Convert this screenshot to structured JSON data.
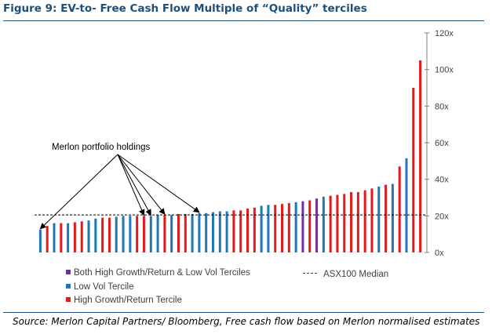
{
  "figure": {
    "title": "Figure 9: EV-to- Free Cash Flow Multiple of “Quality” terciles",
    "source": "Source: Merlon Capital Partners/ Bloomberg, Free cash flow based on Merlon normalised estimates"
  },
  "chart_data": {
    "type": "bar",
    "y_axis": {
      "position": "right",
      "ylim": [
        0,
        120
      ],
      "ticks": [
        0,
        20,
        40,
        60,
        80,
        100,
        120
      ],
      "tick_labels": [
        "0x",
        "20x",
        "40x",
        "60x",
        "80x",
        "100x",
        "120x"
      ]
    },
    "colors": {
      "blue": "#1f77b4",
      "red": "#e31a1c",
      "purple": "#7030a0"
    },
    "series": [
      {
        "name": "Both High Growth/Return & Low Vol Terciles",
        "color_key": "purple"
      },
      {
        "name": "Low Vol Tercile",
        "color_key": "blue"
      },
      {
        "name": "High Growth/Return Tercile",
        "color_key": "red"
      }
    ],
    "bars": [
      {
        "value": 12.5,
        "series": "blue"
      },
      {
        "value": 14.5,
        "series": "red"
      },
      {
        "value": 16,
        "series": "blue"
      },
      {
        "value": 16,
        "series": "red"
      },
      {
        "value": 16,
        "series": "blue"
      },
      {
        "value": 16.5,
        "series": "red"
      },
      {
        "value": 17,
        "series": "red"
      },
      {
        "value": 17.5,
        "series": "blue"
      },
      {
        "value": 18.5,
        "series": "blue"
      },
      {
        "value": 19,
        "series": "red"
      },
      {
        "value": 19,
        "series": "red"
      },
      {
        "value": 19.5,
        "series": "blue"
      },
      {
        "value": 20,
        "series": "blue"
      },
      {
        "value": 20,
        "series": "blue"
      },
      {
        "value": 20,
        "series": "red"
      },
      {
        "value": 20,
        "series": "red"
      },
      {
        "value": 20,
        "series": "blue"
      },
      {
        "value": 20.5,
        "series": "blue"
      },
      {
        "value": 20.5,
        "series": "red"
      },
      {
        "value": 20.5,
        "series": "blue"
      },
      {
        "value": 21,
        "series": "red"
      },
      {
        "value": 21,
        "series": "red"
      },
      {
        "value": 21,
        "series": "blue"
      },
      {
        "value": 21.5,
        "series": "blue"
      },
      {
        "value": 21.5,
        "series": "blue"
      },
      {
        "value": 22,
        "series": "blue"
      },
      {
        "value": 22.5,
        "series": "blue"
      },
      {
        "value": 22.5,
        "series": "blue"
      },
      {
        "value": 23,
        "series": "red"
      },
      {
        "value": 23,
        "series": "red"
      },
      {
        "value": 24,
        "series": "red"
      },
      {
        "value": 24.5,
        "series": "red"
      },
      {
        "value": 25.5,
        "series": "blue"
      },
      {
        "value": 26,
        "series": "blue"
      },
      {
        "value": 26,
        "series": "red"
      },
      {
        "value": 26.5,
        "series": "red"
      },
      {
        "value": 27,
        "series": "red"
      },
      {
        "value": 27.5,
        "series": "blue"
      },
      {
        "value": 28,
        "series": "purple"
      },
      {
        "value": 28.5,
        "series": "red"
      },
      {
        "value": 29.5,
        "series": "purple"
      },
      {
        "value": 30.5,
        "series": "blue"
      },
      {
        "value": 31,
        "series": "red"
      },
      {
        "value": 31.5,
        "series": "red"
      },
      {
        "value": 32,
        "series": "red"
      },
      {
        "value": 33,
        "series": "red"
      },
      {
        "value": 33,
        "series": "red"
      },
      {
        "value": 34,
        "series": "red"
      },
      {
        "value": 35,
        "series": "red"
      },
      {
        "value": 36,
        "series": "blue"
      },
      {
        "value": 37,
        "series": "red"
      },
      {
        "value": 37.5,
        "series": "blue"
      },
      {
        "value": 47,
        "series": "red"
      },
      {
        "value": 51.5,
        "series": "blue"
      },
      {
        "value": 90,
        "series": "red"
      },
      {
        "value": 105,
        "series": "red"
      }
    ],
    "median": {
      "value": 20.5,
      "label": "ASX100 Median"
    },
    "annotation": {
      "text": "Merlon portfolio holdings",
      "target_bars": [
        0,
        15,
        16,
        18,
        23
      ]
    }
  }
}
